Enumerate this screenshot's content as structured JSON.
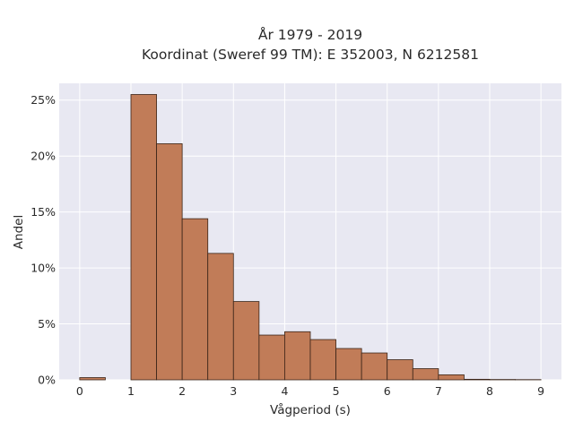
{
  "chart_data": {
    "type": "bar",
    "title_lines": [
      "År 1979 - 2019",
      "Koordinat (Sweref 99 TM): E 352003, N 6212581"
    ],
    "xlabel": "Vågperiod (s)",
    "ylabel": "Andel",
    "xlim": [
      -0.4,
      9.4
    ],
    "ylim": [
      0,
      26.5
    ],
    "x_ticks": [
      0,
      1,
      2,
      3,
      4,
      5,
      6,
      7,
      8,
      9
    ],
    "y_ticks": [
      0,
      5,
      10,
      15,
      20,
      25
    ],
    "y_tick_labels": [
      "0%",
      "5%",
      "10%",
      "15%",
      "20%",
      "25%"
    ],
    "bin_width": 0.5,
    "bins": [
      {
        "x0": 0.0,
        "value": 0.2
      },
      {
        "x0": 1.0,
        "value": 25.5
      },
      {
        "x0": 1.5,
        "value": 21.1
      },
      {
        "x0": 2.0,
        "value": 14.4
      },
      {
        "x0": 2.5,
        "value": 11.3
      },
      {
        "x0": 3.0,
        "value": 7.0
      },
      {
        "x0": 3.5,
        "value": 4.0
      },
      {
        "x0": 4.0,
        "value": 4.3
      },
      {
        "x0": 4.5,
        "value": 3.6
      },
      {
        "x0": 5.0,
        "value": 2.8
      },
      {
        "x0": 5.5,
        "value": 2.4
      },
      {
        "x0": 6.0,
        "value": 1.8
      },
      {
        "x0": 6.5,
        "value": 1.0
      },
      {
        "x0": 7.0,
        "value": 0.45
      },
      {
        "x0": 7.5,
        "value": 0.05
      },
      {
        "x0": 8.0,
        "value": 0.03
      },
      {
        "x0": 8.5,
        "value": 0.02
      }
    ],
    "grid": true,
    "colors": {
      "bar_fill": "#c17c58",
      "bar_stroke": "#3a2418",
      "plot_bg": "#e8e8f2",
      "grid": "#ffffff"
    }
  }
}
